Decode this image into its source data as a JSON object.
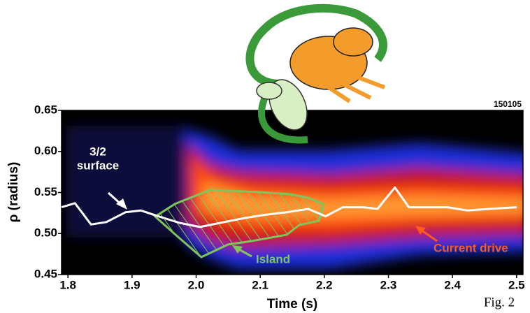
{
  "chart_data": {
    "type": "line",
    "id_label": "150105",
    "xlabel": "Time (s)",
    "ylabel": "ρ (radius)",
    "caption": "Fig. 2",
    "annotations": {
      "surface_line1": "3/2",
      "surface_line2": "surface",
      "island": "Island",
      "current_drive": "Current drive"
    },
    "x": [
      1.79,
      1.811,
      1.836,
      1.86,
      1.89,
      1.914,
      1.941,
      1.974,
      2.006,
      2.044,
      2.077,
      2.109,
      2.142,
      2.175,
      2.202,
      2.229,
      2.261,
      2.283,
      2.31,
      2.332,
      2.359,
      2.392,
      2.424,
      2.457,
      2.5
    ],
    "series": [
      {
        "color": "#ffffff",
        "values": [
          0.532,
          0.537,
          0.511,
          0.514,
          0.526,
          0.528,
          0.521,
          0.513,
          0.508,
          0.514,
          0.519,
          0.523,
          0.526,
          0.53,
          0.521,
          0.532,
          0.532,
          0.53,
          0.556,
          0.532,
          0.532,
          0.532,
          0.528,
          0.53,
          0.532
        ]
      }
    ],
    "xlim": [
      1.79,
      2.51
    ],
    "ylim": [
      0.45,
      0.65
    ],
    "xticks": [
      1.8,
      1.9,
      {
        "value": 2.0,
        "label": "2.0"
      },
      2.1,
      2.2,
      2.3,
      2.4,
      2.5
    ],
    "yticks": [
      0.45,
      {
        "value": 0.5,
        "label": "0.50"
      },
      0.55,
      {
        "value": 0.6,
        "label": "0.60"
      },
      0.65
    ]
  }
}
